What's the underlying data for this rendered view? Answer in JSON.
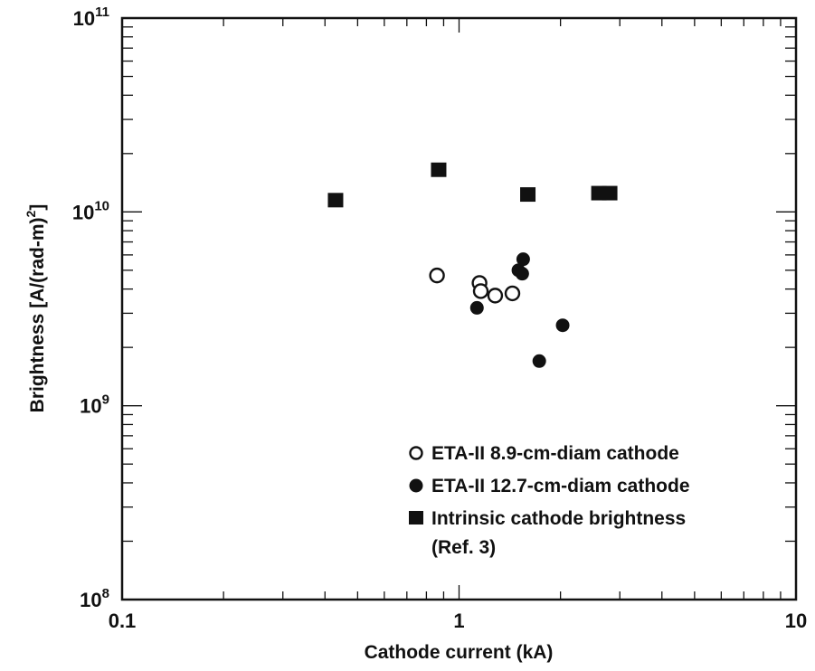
{
  "chart_data": {
    "type": "scatter",
    "xlabel": "Cathode current (kA)",
    "ylabel": "Brightness [A/(rad-m)",
    "ylabel_sup": "2",
    "ylabel_close": "]",
    "x_scale": "log",
    "y_scale": "log",
    "xlim": [
      0.1,
      10
    ],
    "ylim": [
      100000000,
      100000000000
    ],
    "x_tick_labels": [
      {
        "value": 0.1,
        "text": "0.1"
      },
      {
        "value": 1,
        "text": "1"
      },
      {
        "value": 10,
        "text": "10"
      }
    ],
    "y_tick_labels": [
      {
        "value": 100000000,
        "base": "10",
        "exp": "8"
      },
      {
        "value": 1000000000,
        "base": "10",
        "exp": "9"
      },
      {
        "value": 10000000000,
        "base": "10",
        "exp": "10"
      },
      {
        "value": 100000000000,
        "base": "10",
        "exp": "11"
      }
    ],
    "grid": false,
    "legend_position": "bottom-right",
    "series": [
      {
        "name": "ETA-II 8.9-cm-diam cathode",
        "marker": "open-circle",
        "points": [
          {
            "x": 0.86,
            "y": 4700000000
          },
          {
            "x": 1.15,
            "y": 4300000000
          },
          {
            "x": 1.16,
            "y": 3900000000
          },
          {
            "x": 1.28,
            "y": 3700000000
          },
          {
            "x": 1.44,
            "y": 3800000000
          }
        ]
      },
      {
        "name": "ETA-II 12.7-cm-diam cathode",
        "marker": "filled-circle",
        "points": [
          {
            "x": 1.13,
            "y": 3200000000
          },
          {
            "x": 1.5,
            "y": 5000000000
          },
          {
            "x": 1.54,
            "y": 4800000000
          },
          {
            "x": 1.55,
            "y": 5700000000
          },
          {
            "x": 1.73,
            "y": 1700000000
          },
          {
            "x": 2.03,
            "y": 2600000000
          }
        ]
      },
      {
        "name": "Intrinsic cathode brightness",
        "name_line2": "(Ref. 3)",
        "marker": "filled-square",
        "points": [
          {
            "x": 0.43,
            "y": 11500000000
          },
          {
            "x": 0.87,
            "y": 16500000000
          },
          {
            "x": 1.6,
            "y": 12300000000
          },
          {
            "x": 2.6,
            "y": 12500000000
          },
          {
            "x": 2.8,
            "y": 12500000000
          }
        ]
      }
    ]
  }
}
